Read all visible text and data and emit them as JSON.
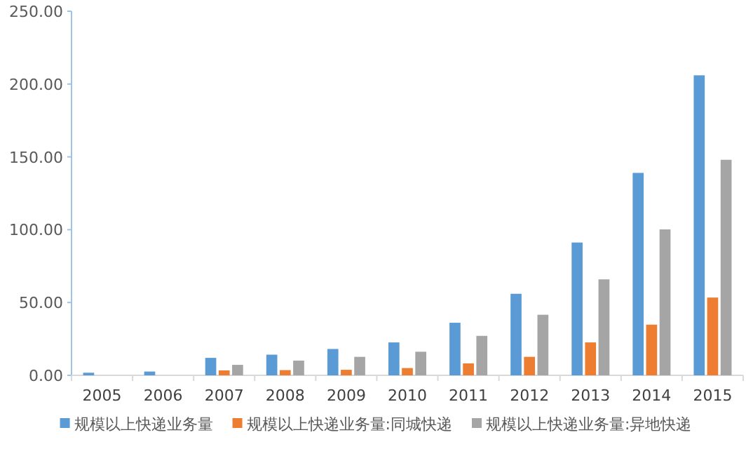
{
  "chart_data": {
    "type": "bar",
    "categories": [
      "2005",
      "2006",
      "2007",
      "2008",
      "2009",
      "2010",
      "2011",
      "2012",
      "2013",
      "2014",
      "2015"
    ],
    "series": [
      {
        "name": "规模以上快递业务量",
        "color": "#5b9bd5",
        "values": [
          1.8,
          2.6,
          12.0,
          14.2,
          18.1,
          22.6,
          36.1,
          56.0,
          91.2,
          139.0,
          206.0
        ]
      },
      {
        "name": "规模以上快递业务量:同城快递",
        "color": "#ed7d31",
        "values": [
          null,
          null,
          3.4,
          3.6,
          3.8,
          5.0,
          8.2,
          12.7,
          22.6,
          34.8,
          53.4
        ]
      },
      {
        "name": "规模以上快递业务量:异地快递",
        "color": "#a5a5a5",
        "values": [
          null,
          null,
          7.2,
          10.1,
          12.7,
          16.2,
          27.1,
          41.6,
          65.9,
          100.2,
          148.0
        ]
      }
    ],
    "ylim": [
      0,
      250
    ],
    "yticks": [
      {
        "value": 0,
        "label": "0.00"
      },
      {
        "value": 50,
        "label": "50.00"
      },
      {
        "value": 100,
        "label": "100.00"
      },
      {
        "value": 150,
        "label": "150.00"
      },
      {
        "value": 200,
        "label": "200.00"
      },
      {
        "value": 250,
        "label": "250.00"
      }
    ],
    "legend": "bottom",
    "grid": false
  }
}
